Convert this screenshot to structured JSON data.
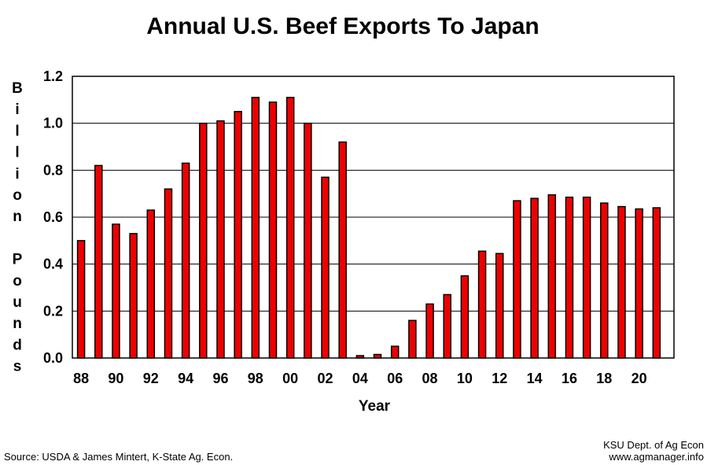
{
  "chart_data": {
    "type": "bar",
    "title": "Annual U.S. Beef Exports To Japan",
    "xlabel": "Year",
    "ylabel": "Billion Pounds",
    "ylim": [
      0,
      1.2
    ],
    "yticks": [
      "0.0",
      "0.2",
      "0.4",
      "0.6",
      "0.8",
      "1.0",
      "1.2"
    ],
    "grid": true,
    "categories": [
      "88",
      "89",
      "90",
      "91",
      "92",
      "93",
      "94",
      "95",
      "96",
      "97",
      "98",
      "99",
      "00",
      "01",
      "02",
      "03",
      "04",
      "05",
      "06",
      "07",
      "08",
      "09",
      "10",
      "11",
      "12",
      "13",
      "14",
      "15",
      "16",
      "17",
      "18",
      "19",
      "20",
      "21"
    ],
    "xtick_labels": [
      "88",
      "",
      "90",
      "",
      "92",
      "",
      "94",
      "",
      "96",
      "",
      "98",
      "",
      "00",
      "",
      "02",
      "",
      "04",
      "",
      "06",
      "",
      "08",
      "",
      "10",
      "",
      "12",
      "",
      "14",
      "",
      "16",
      "",
      "18",
      "",
      "20",
      ""
    ],
    "values": [
      0.5,
      0.82,
      0.57,
      0.53,
      0.63,
      0.72,
      0.83,
      1.0,
      1.01,
      1.05,
      1.11,
      1.09,
      1.11,
      1.0,
      0.77,
      0.92,
      0.01,
      0.015,
      0.05,
      0.16,
      0.23,
      0.27,
      0.35,
      0.455,
      0.445,
      0.67,
      0.68,
      0.695,
      0.685,
      0.685,
      0.66,
      0.645,
      0.635,
      0.64
    ],
    "bar_color": "#ee0000"
  },
  "footer": {
    "source": "Source:  USDA & James Mintert, K-State Ag. Econ.",
    "credit_line1": "KSU Dept. of Ag Econ",
    "credit_line2": "www.agmanager.info"
  }
}
